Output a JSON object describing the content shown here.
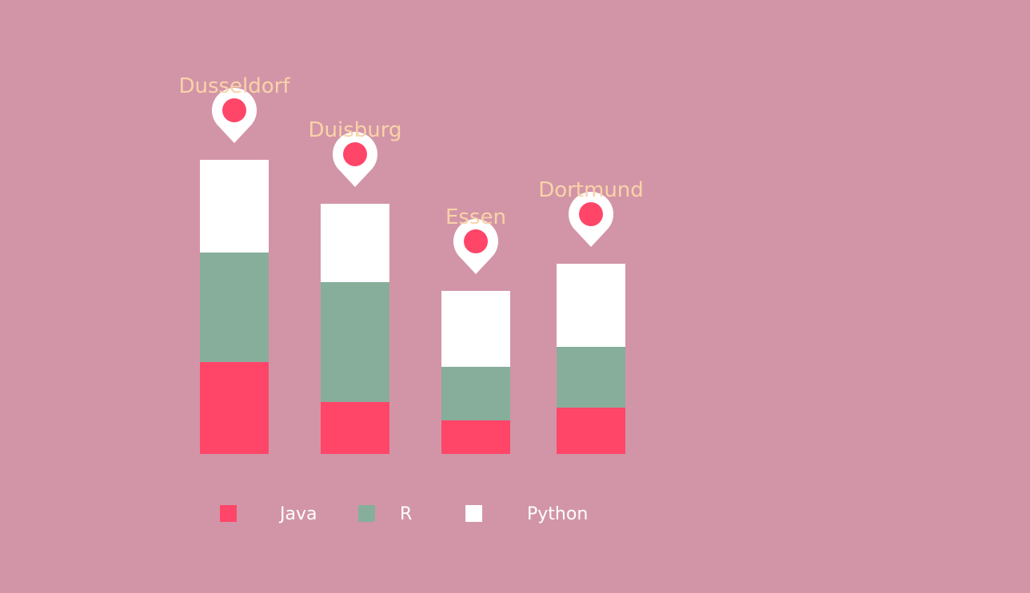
{
  "chart_data": {
    "type": "bar",
    "stacked": true,
    "categories": [
      "Dusseldorf",
      "Duisburg",
      "Essen",
      "Dortmund"
    ],
    "series": [
      {
        "name": "Java",
        "color": "#ff4669",
        "values": [
          11.5,
          6.5,
          4.2,
          5.8
        ]
      },
      {
        "name": "R",
        "color": "#87ae9b",
        "values": [
          13.7,
          15.0,
          6.7,
          7.6
        ]
      },
      {
        "name": "Python",
        "color": "#ffffff",
        "values": [
          11.6,
          9.8,
          9.5,
          10.4
        ]
      }
    ],
    "ylim": [
      0,
      40
    ],
    "grid": false,
    "legend": "bottom",
    "label_color": "#f9d3a8",
    "marker_icon": "map-pin-icon",
    "marker_color": "#ffffff",
    "marker_dot_color": "#ff4669"
  }
}
